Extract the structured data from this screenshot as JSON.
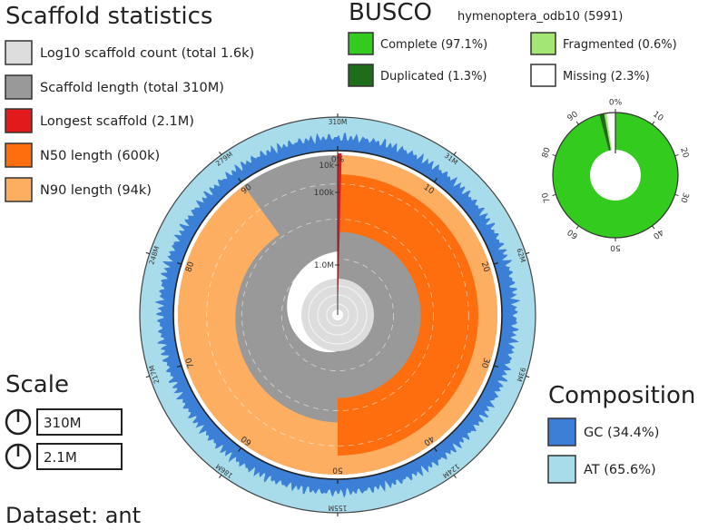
{
  "title": "Scaffold statistics",
  "legend": [
    {
      "label": "Log10 scaffold count (total 1.6k)",
      "color": "#dddddd"
    },
    {
      "label": "Scaffold length (total 310M)",
      "color": "#999999"
    },
    {
      "label": "Longest scaffold (2.1M)",
      "color": "#e31a1c"
    },
    {
      "label": "N50 length (600k)",
      "color": "#fe6d0e"
    },
    {
      "label": "N90 length (94k)",
      "color": "#fdae61"
    }
  ],
  "busco": {
    "title": "BUSCO",
    "lineage": "hymenoptera_odb10 (5991)",
    "items": [
      {
        "label": "Complete (97.1%)",
        "color": "#33cc1e"
      },
      {
        "label": "Fragmented (0.6%)",
        "color": "#a3e673"
      },
      {
        "label": "Duplicated (1.3%)",
        "color": "#1e6d1a"
      },
      {
        "label": "Missing (2.3%)",
        "color": "#ffffff"
      }
    ],
    "ticks": [
      "0%",
      "10",
      "20",
      "30",
      "40",
      "50",
      "60",
      "70",
      "80",
      "90"
    ]
  },
  "scale": {
    "title": "Scale",
    "values": [
      "310M",
      "2.1M"
    ]
  },
  "composition": {
    "title": "Composition",
    "items": [
      {
        "label": "GC (34.4%)",
        "color": "#3b7fd6"
      },
      {
        "label": "AT (65.6%)",
        "color": "#a8dcea"
      }
    ]
  },
  "dataset": "Dataset: ant",
  "chart_data": [
    {
      "type": "snail",
      "title": "Scaffold statistics",
      "total_length": "310M",
      "scaffold_count": "1.6k",
      "longest_scaffold": "2.1M",
      "n50_length": "600k",
      "n90_length": "94k",
      "percent_ticks": [
        "0%",
        "10",
        "20",
        "30",
        "40",
        "50",
        "60",
        "70",
        "80",
        "90"
      ],
      "outer_ticks": [
        "310M",
        "31M",
        "62M",
        "93M",
        "124M",
        "155M",
        "186M",
        "217M",
        "248M",
        "279M"
      ],
      "radial_labels": [
        "10k",
        "100k",
        "1.0M"
      ],
      "composition": {
        "gc_percent": 34.4,
        "at_percent": 65.6
      }
    },
    {
      "type": "pie",
      "title": "BUSCO",
      "labels": [
        "Complete",
        "Duplicated",
        "Fragmented",
        "Missing"
      ],
      "values": [
        97.1,
        1.3,
        0.6,
        2.3
      ]
    }
  ]
}
